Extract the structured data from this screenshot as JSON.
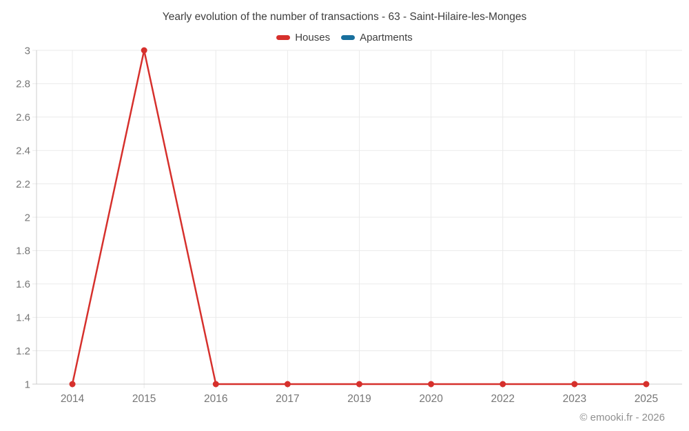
{
  "watermark": "© emooki.fr - 2026",
  "chart_data": {
    "type": "line",
    "title": "Yearly evolution of the number of transactions - 63 - Saint-Hilaire-les-Monges",
    "categories": [
      "2014",
      "2015",
      "2016",
      "2017",
      "2019",
      "2020",
      "2022",
      "2023",
      "2025"
    ],
    "series": [
      {
        "name": "Houses",
        "color": "#d6302c",
        "values": [
          1,
          3,
          1,
          1,
          1,
          1,
          1,
          1,
          1
        ]
      },
      {
        "name": "Apartments",
        "color": "#19709d",
        "values": []
      }
    ],
    "xlabel": "",
    "ylabel": "",
    "ylim": [
      1,
      3
    ],
    "yticks": [
      1,
      1.2,
      1.4,
      1.6,
      1.8,
      2,
      2.2,
      2.4,
      2.6,
      2.8,
      3
    ],
    "grid": true,
    "legend_position": "top",
    "colors": {
      "grid_line": "#eaeaea",
      "axis_line": "#cccccc",
      "tick_label": "#767676"
    }
  }
}
